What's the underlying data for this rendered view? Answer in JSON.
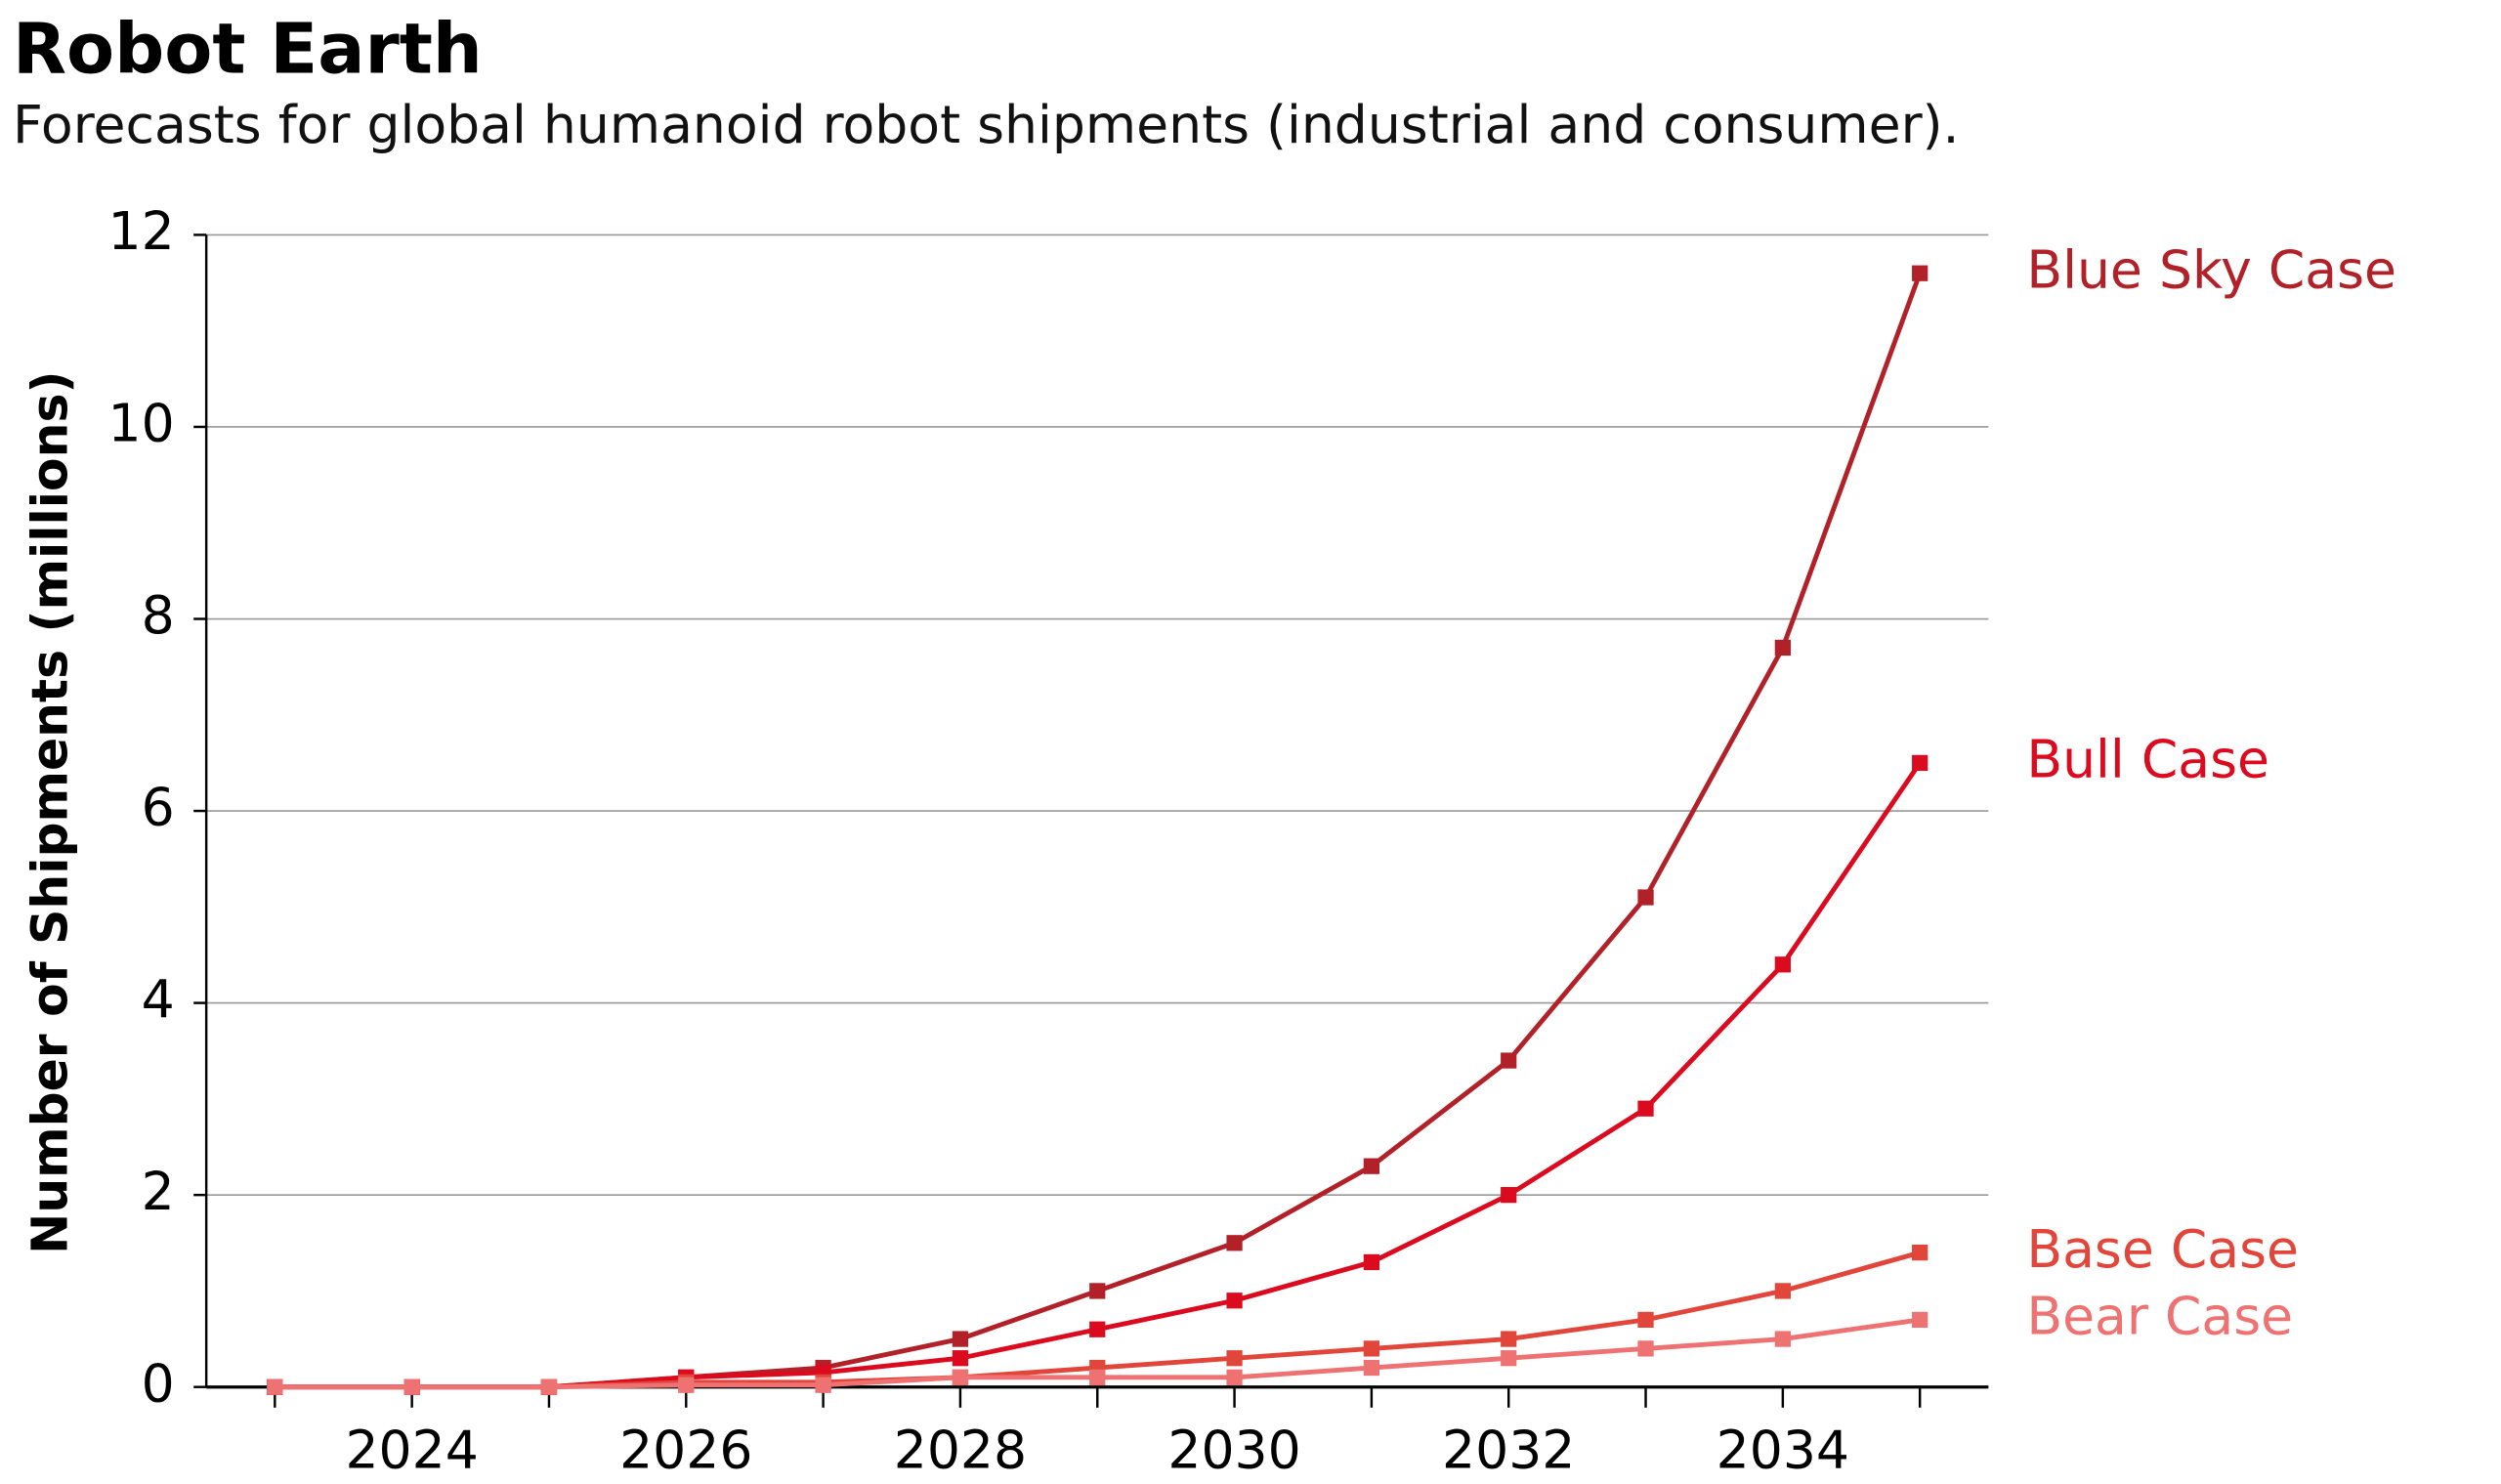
{
  "chart_data": {
    "type": "line",
    "title": "Robot Earth",
    "subtitle": "Forecasts for global humanoid robot shipments (industrial and consumer).",
    "y_label": "Number of Shipments (millions)",
    "x": [
      2023,
      2024,
      2025,
      2026,
      2027,
      2028,
      2029,
      2030,
      2031,
      2032,
      2033,
      2034,
      2035
    ],
    "series": [
      {
        "name": "Blue Sky Case",
        "color": "#b22028",
        "values": [
          0,
          0,
          0,
          0.1,
          0.2,
          0.5,
          1.0,
          1.5,
          2.3,
          3.4,
          5.1,
          7.7,
          11.6
        ]
      },
      {
        "name": "Bull Case",
        "color": "#dc0a1e",
        "values": [
          0,
          0,
          0,
          0.1,
          0.15,
          0.3,
          0.6,
          0.9,
          1.3,
          2.0,
          2.9,
          4.4,
          6.5
        ]
      },
      {
        "name": "Base Case",
        "color": "#e2453a",
        "values": [
          0,
          0,
          0,
          0.05,
          0.05,
          0.1,
          0.2,
          0.3,
          0.4,
          0.5,
          0.7,
          1.0,
          1.4
        ]
      },
      {
        "name": "Bear Case",
        "color": "#ee7272",
        "values": [
          0,
          0,
          0,
          0.02,
          0.02,
          0.1,
          0.1,
          0.1,
          0.2,
          0.3,
          0.4,
          0.5,
          0.7
        ]
      }
    ],
    "xlim": [
      2022.5,
      2035.5
    ],
    "xticks": [
      2024,
      2026,
      2028,
      2030,
      2032,
      2034
    ],
    "ylim": [
      0,
      12
    ],
    "yticks": [
      0,
      2,
      4,
      6,
      8,
      10,
      12
    ],
    "grid": true,
    "legend": "right-end"
  }
}
